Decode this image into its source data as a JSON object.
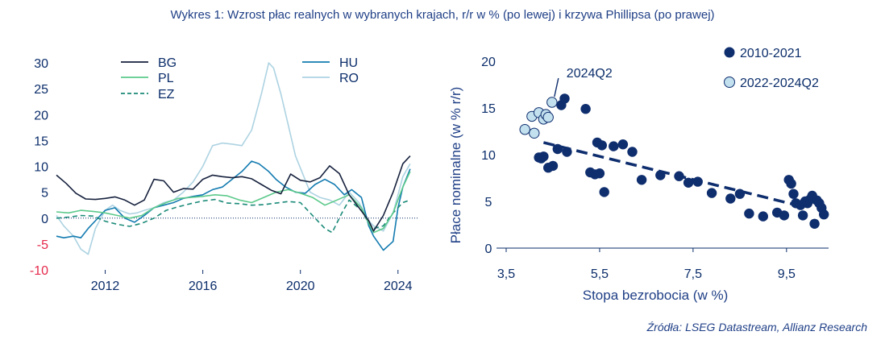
{
  "title": "Wykres 1: Wzrost płac realnych w wybranych krajach, r/r w % (po lewej) i krzywa Phillipsa (po prawej)",
  "source": "Źródła: LSEG Datastream, Allianz Research",
  "colors": {
    "text": "#1f3f86",
    "axis": "#0b2d6a",
    "negative": "#e5294b",
    "zero": "#0b2d6a"
  },
  "chart_data": [
    {
      "type": "line",
      "ylim": [
        -10,
        30
      ],
      "xlim": [
        2010,
        2024.8
      ],
      "y_ticks": [
        "30",
        "25",
        "20",
        "15",
        "10",
        "5",
        "0",
        "-5",
        "-10"
      ],
      "y_tick_values": [
        30,
        25,
        20,
        15,
        10,
        5,
        0,
        -5,
        -10
      ],
      "x_ticks": [
        "2012",
        "2016",
        "2020",
        "2024"
      ],
      "x_tick_values": [
        2012,
        2016,
        2020,
        2024
      ],
      "legend": [
        "BG",
        "PL",
        "EZ",
        "HU",
        "RO"
      ],
      "series": [
        {
          "name": "BG",
          "color": "#16213d",
          "dash": "",
          "x": [
            2010.0,
            2010.4,
            2010.8,
            2011.2,
            2011.6,
            2012.0,
            2012.4,
            2012.8,
            2013.2,
            2013.6,
            2014.0,
            2014.4,
            2014.8,
            2015.2,
            2015.6,
            2016.0,
            2016.4,
            2016.8,
            2017.2,
            2017.6,
            2018.0,
            2018.4,
            2018.8,
            2019.2,
            2019.6,
            2020.0,
            2020.4,
            2020.8,
            2021.2,
            2021.6,
            2022.0,
            2022.4,
            2022.8,
            2023.0,
            2023.4,
            2023.8,
            2024.2,
            2024.5
          ],
          "y": [
            8.3,
            6.7,
            4.8,
            3.7,
            3.6,
            3.8,
            4.1,
            3.5,
            2.5,
            3.5,
            7.5,
            7.2,
            5.0,
            5.7,
            5.6,
            7.5,
            8.3,
            8.0,
            7.8,
            8.0,
            7.6,
            6.5,
            5.4,
            4.7,
            8.5,
            7.3,
            7.0,
            7.8,
            10.1,
            8.6,
            4.5,
            2.0,
            -0.5,
            -2.5,
            0.5,
            5.0,
            10.5,
            12.0
          ]
        },
        {
          "name": "PL",
          "color": "#5cc98b",
          "dash": "",
          "x": [
            2010.0,
            2010.5,
            2011.0,
            2011.5,
            2012.0,
            2012.5,
            2013.0,
            2013.5,
            2014.0,
            2014.5,
            2015.0,
            2015.5,
            2016.0,
            2016.5,
            2017.0,
            2017.5,
            2018.0,
            2018.5,
            2019.0,
            2019.5,
            2020.0,
            2020.5,
            2021.0,
            2021.5,
            2022.0,
            2022.5,
            2022.8,
            2023.0,
            2023.4,
            2023.8,
            2024.2,
            2024.5
          ],
          "y": [
            1.2,
            1.0,
            1.5,
            1.3,
            1.0,
            0.5,
            0.0,
            0.5,
            2.0,
            3.0,
            3.8,
            4.0,
            4.2,
            4.5,
            4.3,
            3.5,
            3.0,
            4.0,
            5.0,
            5.5,
            4.8,
            4.0,
            2.5,
            3.5,
            4.5,
            2.0,
            -1.0,
            -2.8,
            -2.0,
            1.0,
            6.0,
            9.0
          ]
        },
        {
          "name": "EZ",
          "color": "#1b8a78",
          "dash": "6,4",
          "x": [
            2010.0,
            2010.5,
            2011.0,
            2011.5,
            2012.0,
            2012.5,
            2013.0,
            2013.5,
            2014.0,
            2014.5,
            2015.0,
            2015.5,
            2016.0,
            2016.5,
            2017.0,
            2017.5,
            2018.0,
            2018.5,
            2019.0,
            2019.5,
            2020.0,
            2020.5,
            2021.0,
            2021.3,
            2021.7,
            2022.0,
            2022.5,
            2022.8,
            2023.0,
            2023.4,
            2023.8,
            2024.2,
            2024.5
          ],
          "y": [
            0.0,
            0.2,
            0.5,
            0.4,
            -0.6,
            -1.2,
            -1.6,
            -1.0,
            0.0,
            1.5,
            2.2,
            2.8,
            3.3,
            3.6,
            2.9,
            2.8,
            2.5,
            2.6,
            2.9,
            3.2,
            3.0,
            0.5,
            -2.0,
            -2.8,
            1.0,
            3.5,
            1.5,
            -1.0,
            -2.0,
            -1.5,
            1.0,
            3.0,
            3.5
          ]
        },
        {
          "name": "HU",
          "color": "#137bb0",
          "dash": "",
          "x": [
            2010.0,
            2010.3,
            2010.7,
            2011.0,
            2011.3,
            2011.6,
            2012.0,
            2012.4,
            2012.8,
            2013.2,
            2013.6,
            2014.0,
            2014.4,
            2014.8,
            2015.2,
            2015.6,
            2016.0,
            2016.4,
            2016.8,
            2017.2,
            2017.6,
            2018.0,
            2018.3,
            2018.7,
            2019.0,
            2019.4,
            2019.8,
            2020.2,
            2020.6,
            2021.0,
            2021.4,
            2021.8,
            2022.1,
            2022.5,
            2022.8,
            2023.0,
            2023.4,
            2023.8,
            2024.0,
            2024.2,
            2024.5
          ],
          "y": [
            -3.5,
            -3.8,
            -3.5,
            -3.8,
            -2.0,
            -0.5,
            1.5,
            2.0,
            0.0,
            -0.8,
            0.5,
            2.0,
            2.5,
            3.0,
            3.8,
            4.2,
            4.5,
            5.5,
            6.0,
            7.5,
            9.0,
            11.0,
            10.5,
            9.0,
            7.5,
            6.0,
            5.0,
            4.8,
            6.5,
            7.5,
            6.5,
            4.5,
            5.5,
            4.0,
            -1.5,
            -3.5,
            -6.2,
            -4.5,
            2.0,
            6.0,
            9.5
          ]
        },
        {
          "name": "RO",
          "color": "#add3e2",
          "dash": "",
          "x": [
            2010.0,
            2010.3,
            2010.7,
            2011.0,
            2011.3,
            2011.6,
            2012.0,
            2012.3,
            2012.6,
            2013.0,
            2013.3,
            2013.6,
            2014.0,
            2014.4,
            2014.8,
            2015.2,
            2015.6,
            2016.0,
            2016.4,
            2016.8,
            2017.2,
            2017.6,
            2018.0,
            2018.4,
            2018.7,
            2018.9,
            2019.2,
            2019.5,
            2019.8,
            2020.1,
            2020.4,
            2020.8,
            2021.2,
            2021.6,
            2022.0,
            2022.4,
            2022.8,
            2023.0,
            2023.4,
            2023.8,
            2024.2,
            2024.5
          ],
          "y": [
            0.5,
            -1.5,
            -3.5,
            -6.0,
            -7.0,
            -2.0,
            1.5,
            2.5,
            1.5,
            0.8,
            1.0,
            1.5,
            2.0,
            3.0,
            3.5,
            5.0,
            7.0,
            10.0,
            14.0,
            14.5,
            14.3,
            14.0,
            17.0,
            24.0,
            30.0,
            29.0,
            24.0,
            18.0,
            12.0,
            8.5,
            5.0,
            4.0,
            3.5,
            2.5,
            5.0,
            3.0,
            -0.5,
            -1.5,
            -2.5,
            1.0,
            8.0,
            10.5
          ]
        }
      ]
    },
    {
      "type": "scatter",
      "xlabel": "Stopa bezrobocia (w %)",
      "ylabel": "Płace nominalne (w % r/r)",
      "xlim": [
        3.5,
        10.4
      ],
      "ylim": [
        0,
        20
      ],
      "x_ticks": [
        "3,5",
        "5,5",
        "7,5",
        "9,5"
      ],
      "x_tick_values": [
        3.5,
        5.5,
        7.5,
        9.5
      ],
      "y_ticks": [
        "20",
        "15",
        "10",
        "5",
        "0"
      ],
      "y_tick_values": [
        20,
        15,
        10,
        5,
        0
      ],
      "annotation": {
        "label": "2024Q2",
        "x": 4.48,
        "y": 15.6
      },
      "trendline": {
        "x": [
          4.3,
          9.8
        ],
        "y": [
          11.3,
          4.5
        ]
      },
      "legend": [
        "2010-2021",
        "2022-2024Q2"
      ],
      "series": [
        {
          "name": "2010-2021",
          "color": "#0f2e6e",
          "stroke": "#0f2e6e",
          "x": [
            4.2,
            4.25,
            4.3,
            4.4,
            4.5,
            4.6,
            4.68,
            4.75,
            4.8,
            5.2,
            5.3,
            5.4,
            5.45,
            5.5,
            5.55,
            5.6,
            5.8,
            6.0,
            6.2,
            6.4,
            6.8,
            7.2,
            7.4,
            7.6,
            7.9,
            8.3,
            8.5,
            8.7,
            9.0,
            9.3,
            9.45,
            9.55,
            9.6,
            9.65,
            9.7,
            9.8,
            9.85,
            9.9,
            9.95,
            10.0,
            10.05,
            10.1,
            10.15,
            10.2,
            10.25,
            10.3
          ],
          "y": [
            9.7,
            9.6,
            9.8,
            8.6,
            8.8,
            10.6,
            15.3,
            16.0,
            10.3,
            14.9,
            8.1,
            7.9,
            11.3,
            8.0,
            11.0,
            6.0,
            10.9,
            11.1,
            10.3,
            7.3,
            7.8,
            7.7,
            7.0,
            7.1,
            5.9,
            5.3,
            5.8,
            3.7,
            3.4,
            3.8,
            3.5,
            7.3,
            6.9,
            5.8,
            4.8,
            4.6,
            3.5,
            5.0,
            4.8,
            5.2,
            5.6,
            2.6,
            5.1,
            4.8,
            4.3,
            3.6
          ]
        },
        {
          "name": "2022-2024Q2",
          "color": "#c2e0ee",
          "stroke": "#0f2e6e",
          "x": [
            3.9,
            4.05,
            4.1,
            4.2,
            4.3,
            4.35,
            4.4,
            4.48
          ],
          "y": [
            12.7,
            14.1,
            12.3,
            14.5,
            13.8,
            14.3,
            14.0,
            15.6
          ]
        }
      ]
    }
  ]
}
